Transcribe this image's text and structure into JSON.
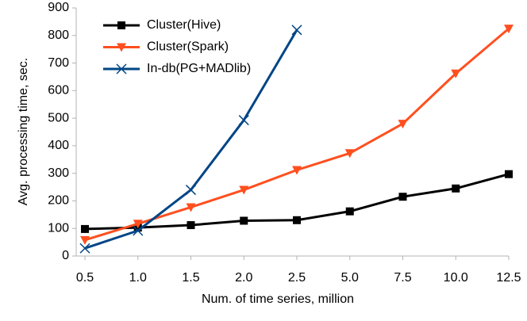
{
  "chart_data": {
    "type": "line",
    "xlabel": "Num. of time series, million",
    "ylabel": "Avg. processing time, sec.",
    "categories": [
      "0.5",
      "1.0",
      "1.5",
      "2.0",
      "2.5",
      "5.0",
      "7.5",
      "10.0",
      "12.5"
    ],
    "series": [
      {
        "name": "Cluster(Hive)",
        "color": "#000000",
        "marker": "square",
        "values": [
          98,
          103,
          112,
          128,
          130,
          162,
          215,
          245,
          297
        ]
      },
      {
        "name": "Cluster(Spark)",
        "color": "#ff4f1f",
        "marker": "triangle-down",
        "values": [
          58,
          117,
          177,
          240,
          312,
          373,
          480,
          662,
          825
        ]
      },
      {
        "name": "In-db(PG+MADlib)",
        "color": "#004586",
        "marker": "x",
        "values": [
          28,
          92,
          240,
          493,
          820,
          null,
          null,
          null,
          null
        ]
      }
    ],
    "ylim": [
      0,
      900
    ],
    "yticks": [
      0,
      100,
      200,
      300,
      400,
      500,
      600,
      700,
      800,
      900
    ],
    "grid": false,
    "legend": "upper left"
  }
}
